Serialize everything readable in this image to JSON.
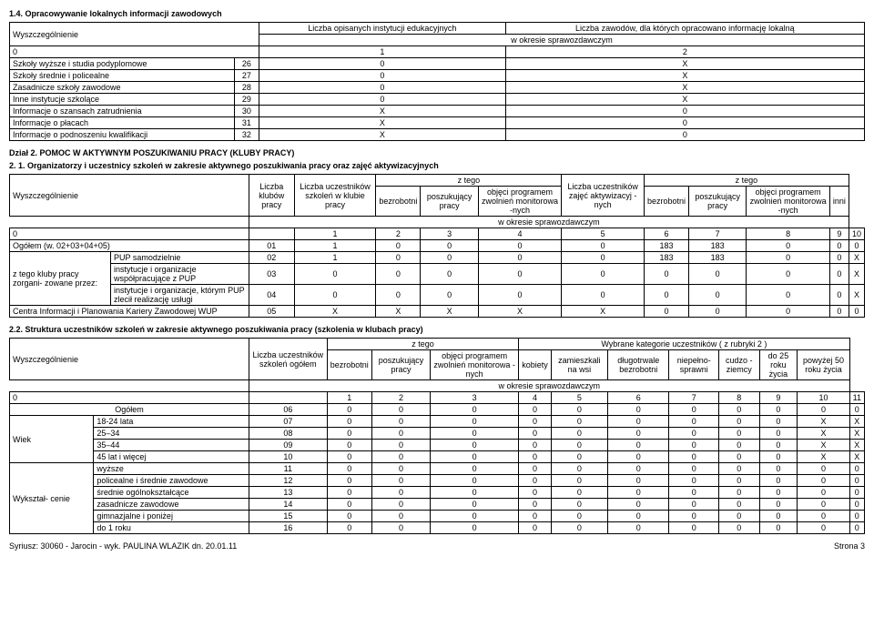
{
  "section14": {
    "title": "1.4. Opracowywanie lokalnych informacji zawodowych",
    "headers": {
      "wysz": "Wyszczególnienie",
      "col1": "Liczba opisanych instytucji edukacyjnych",
      "col2": "Liczba zawodów, dla których opracowano informację lokalną",
      "period": "w okresie sprawozdawczym"
    },
    "idxRow": [
      "0",
      "1",
      "2"
    ],
    "rows": [
      {
        "label": "Szkoły wyższe i studia podyplomowe",
        "n": "26",
        "v1": "0",
        "v2": "X"
      },
      {
        "label": "Szkoły średnie i policealne",
        "n": "27",
        "v1": "0",
        "v2": "X"
      },
      {
        "label": "Zasadnicze szkoły zawodowe",
        "n": "28",
        "v1": "0",
        "v2": "X"
      },
      {
        "label": "Inne instytucje szkolące",
        "n": "29",
        "v1": "0",
        "v2": "X"
      },
      {
        "label": "Informacje o szansach zatrudnienia",
        "n": "30",
        "v1": "X",
        "v2": "0"
      },
      {
        "label": "Informacje o płacach",
        "n": "31",
        "v1": "X",
        "v2": "0"
      },
      {
        "label": "Informacje o podnoszeniu kwalifikacji",
        "n": "32",
        "v1": "X",
        "v2": "0"
      }
    ]
  },
  "dzial2": "Dział 2. POMOC W AKTYWNYM POSZUKIWANIU PRACY (KLUBY PRACY)",
  "section21": {
    "title": "2. 1. Organizatorzy i uczestnicy szkoleń w zakresie aktywnego poszukiwania pracy oraz zajęć aktywizacyjnych",
    "headers": {
      "wysz": "Wyszczególnienie",
      "klubow": "Liczba klubów pracy",
      "uczest": "Liczba uczestników szkoleń w klubie pracy",
      "ztego": "z tego",
      "bezrob": "bezrobotni",
      "poszuk": "poszukujący pracy",
      "objeci": "objęci programem zwolnień monitorowa -nych",
      "liczba2": "Liczba uczestników zajęć aktywizacyj -nych",
      "inni": "inni",
      "period": "w okresie sprawozdawczym"
    },
    "idxRow": [
      "0",
      "1",
      "2",
      "3",
      "4",
      "5",
      "6",
      "7",
      "8",
      "9",
      "10"
    ],
    "rows": [
      {
        "l1": "Ogółem (w. 02+03+04+05)",
        "l2": "",
        "n": "01",
        "v": [
          "1",
          "0",
          "0",
          "0",
          "0",
          "183",
          "183",
          "0",
          "0",
          "0"
        ]
      },
      {
        "l1": "z tego kluby pracy zorgani- zowane przez:",
        "l2": "PUP samodzielnie",
        "n": "02",
        "v": [
          "1",
          "0",
          "0",
          "0",
          "0",
          "183",
          "183",
          "0",
          "0",
          "X"
        ]
      },
      {
        "l1": "",
        "l2": "instytucje i organizacje współpracujące z PUP",
        "n": "03",
        "v": [
          "0",
          "0",
          "0",
          "0",
          "0",
          "0",
          "0",
          "0",
          "0",
          "X"
        ]
      },
      {
        "l1": "",
        "l2": "instytucje i organizacje, którym PUP zlecił realizację usługi",
        "n": "04",
        "v": [
          "0",
          "0",
          "0",
          "0",
          "0",
          "0",
          "0",
          "0",
          "0",
          "X"
        ]
      },
      {
        "l1": "Centra Informacji i Planowania Kariery Zawodowej WUP",
        "l2": "",
        "n": "05",
        "v": [
          "X",
          "X",
          "X",
          "X",
          "X",
          "0",
          "0",
          "0",
          "0",
          "0"
        ]
      }
    ]
  },
  "section22": {
    "title": "2.2. Struktura uczestników szkoleń w zakresie aktywnego poszukiwania pracy (szkolenia w klubach pracy)",
    "headers": {
      "wysz": "Wyszczególnienie",
      "liczba": "Liczba uczestników szkoleń ogółem",
      "ztego": "z tego",
      "bezrob": "bezrobotni",
      "poszuk": "poszukujący pracy",
      "objeci": "objęci programem zwolnień monitorowa -nych",
      "wybrane": "Wybrane kategorie uczestników ( z rubryki 2 )",
      "kobiety": "kobiety",
      "zamiesz": "zamieszkali na wsi",
      "dlugotrw": "długotrwale bezrobotni",
      "niepelno": "niepełno- sprawni",
      "cudzo": "cudzo -ziemcy",
      "do25": "do 25 roku życia",
      "pow50": "powyżej 50 roku życia",
      "period": "w okresie sprawozdawczym"
    },
    "idxRow": [
      "0",
      "1",
      "2",
      "3",
      "4",
      "5",
      "6",
      "7",
      "8",
      "9",
      "10",
      "11"
    ],
    "rows": [
      {
        "g": "",
        "l": "Ogółem",
        "n": "06",
        "v": [
          "0",
          "0",
          "0",
          "0",
          "0",
          "0",
          "0",
          "0",
          "0",
          "0",
          "0"
        ]
      },
      {
        "g": "Wiek",
        "l": "18-24 lata",
        "n": "07",
        "v": [
          "0",
          "0",
          "0",
          "0",
          "0",
          "0",
          "0",
          "0",
          "0",
          "X",
          "X"
        ]
      },
      {
        "g": "",
        "l": "25–34",
        "n": "08",
        "v": [
          "0",
          "0",
          "0",
          "0",
          "0",
          "0",
          "0",
          "0",
          "0",
          "X",
          "X"
        ]
      },
      {
        "g": "",
        "l": "35–44",
        "n": "09",
        "v": [
          "0",
          "0",
          "0",
          "0",
          "0",
          "0",
          "0",
          "0",
          "0",
          "X",
          "X"
        ]
      },
      {
        "g": "",
        "l": "45 lat i więcej",
        "n": "10",
        "v": [
          "0",
          "0",
          "0",
          "0",
          "0",
          "0",
          "0",
          "0",
          "0",
          "X",
          "X"
        ]
      },
      {
        "g": "Wykształ- cenie",
        "l": "wyższe",
        "n": "11",
        "v": [
          "0",
          "0",
          "0",
          "0",
          "0",
          "0",
          "0",
          "0",
          "0",
          "0",
          "0"
        ]
      },
      {
        "g": "",
        "l": "policealne i średnie zawodowe",
        "n": "12",
        "v": [
          "0",
          "0",
          "0",
          "0",
          "0",
          "0",
          "0",
          "0",
          "0",
          "0",
          "0"
        ]
      },
      {
        "g": "",
        "l": "średnie ogólnokształcące",
        "n": "13",
        "v": [
          "0",
          "0",
          "0",
          "0",
          "0",
          "0",
          "0",
          "0",
          "0",
          "0",
          "0"
        ]
      },
      {
        "g": "",
        "l": "zasadnicze zawodowe",
        "n": "14",
        "v": [
          "0",
          "0",
          "0",
          "0",
          "0",
          "0",
          "0",
          "0",
          "0",
          "0",
          "0"
        ]
      },
      {
        "g": "",
        "l": "gimnazjalne i poniżej",
        "n": "15",
        "v": [
          "0",
          "0",
          "0",
          "0",
          "0",
          "0",
          "0",
          "0",
          "0",
          "0",
          "0"
        ]
      },
      {
        "g": "",
        "l": "do 1 roku",
        "n": "16",
        "v": [
          "0",
          "0",
          "0",
          "0",
          "0",
          "0",
          "0",
          "0",
          "0",
          "0",
          "0"
        ]
      }
    ]
  },
  "footer": {
    "left": "Syriusz: 30060 - Jarocin - wyk. PAULINA WLAZIK dn. 20.01.11",
    "right": "Strona 3"
  }
}
